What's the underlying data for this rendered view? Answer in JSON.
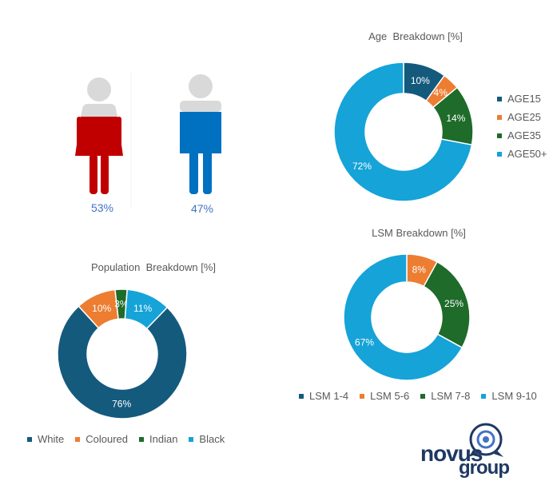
{
  "gender": {
    "female_label": "53%",
    "male_label": "47%",
    "female_value": 53,
    "male_value": 47,
    "colors": {
      "female": "#c00000",
      "male": "#0070c0",
      "head": "#d9d9d9"
    }
  },
  "colors": {
    "series1": "#145a7d",
    "series2": "#ed7d31",
    "series3": "#1e6b2a",
    "series4": "#15a3d8"
  },
  "chart_data": [
    {
      "id": "age",
      "type": "donut",
      "title": "Age  Breakdown [%]",
      "categories": [
        "AGE15",
        "AGE25",
        "AGE35",
        "AGE50+"
      ],
      "values": [
        10,
        4,
        14,
        72
      ],
      "labels": [
        "10%",
        "4%",
        "14%",
        "72%"
      ],
      "legend_position": "right"
    },
    {
      "id": "lsm",
      "type": "donut",
      "title": "LSM Breakdown [%]",
      "categories": [
        "LSM 1-4",
        "LSM 5-6",
        "LSM 7-8",
        "LSM 9-10"
      ],
      "values": [
        0,
        8,
        25,
        67
      ],
      "labels": [
        "",
        "8%",
        "25%",
        "67%"
      ],
      "legend_position": "bottom"
    },
    {
      "id": "population",
      "type": "donut",
      "title": "Population  Breakdown [%]",
      "categories": [
        "White",
        "Coloured",
        "Indian",
        "Black"
      ],
      "values": [
        76,
        10,
        3,
        11
      ],
      "labels": [
        "76%",
        "10%",
        "3%",
        "11%"
      ],
      "legend_position": "bottom"
    }
  ],
  "logo": {
    "line1": "novus",
    "line2": "group",
    "color": "#1f3864"
  }
}
